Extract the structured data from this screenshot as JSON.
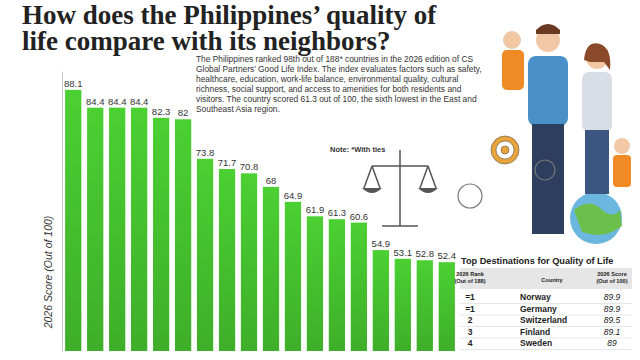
{
  "chart_data": {
    "type": "bar",
    "title": "How does the Philippines’ quality of life compare with its neighbors?",
    "subtitle": "The Philippines ranked 98th out of 188* countries in the 2026 edition of CS Global Partners’ Good Life Index. The index evaluates factors such as safety, healthcare, education, work-life balance, environmental quality, cultural richness, social support, and access to amenities for both residents and visitors. The country scored 61.3 out of 100, the sixth lowest in the East and Southeast Asia region.",
    "note": "Note: *With ties",
    "ylabel": "2026 Score (Out of 100)",
    "categories": [
      null,
      null,
      null,
      null,
      null,
      null,
      null,
      null,
      null,
      null,
      null,
      null,
      null,
      null,
      null,
      null,
      null,
      null
    ],
    "values": [
      88.1,
      84.4,
      84.4,
      84.4,
      82.3,
      82.0,
      73.8,
      71.7,
      70.8,
      68.0,
      64.9,
      61.9,
      61.3,
      60.6,
      54.9,
      53.1,
      52.8,
      52.4
    ],
    "color": "#3fae2a",
    "ylim": [
      34,
      92
    ],
    "yticks": [],
    "tick_labels": false,
    "data_labels": true,
    "grid": false
  },
  "table": {
    "title": "Top Destinations for Quality of Life",
    "columns": [
      "2026 Rank (Out of 188)",
      "Country",
      "2026 Score (Out of 100)"
    ],
    "rows": [
      [
        "=1",
        "Norway",
        89.9
      ],
      [
        "=1",
        "Germany",
        89.9
      ],
      [
        "2",
        "Switzerland",
        89.5
      ],
      [
        "3",
        "Finland",
        89.1
      ],
      [
        "4",
        "Sweden",
        89.0
      ]
    ]
  }
}
